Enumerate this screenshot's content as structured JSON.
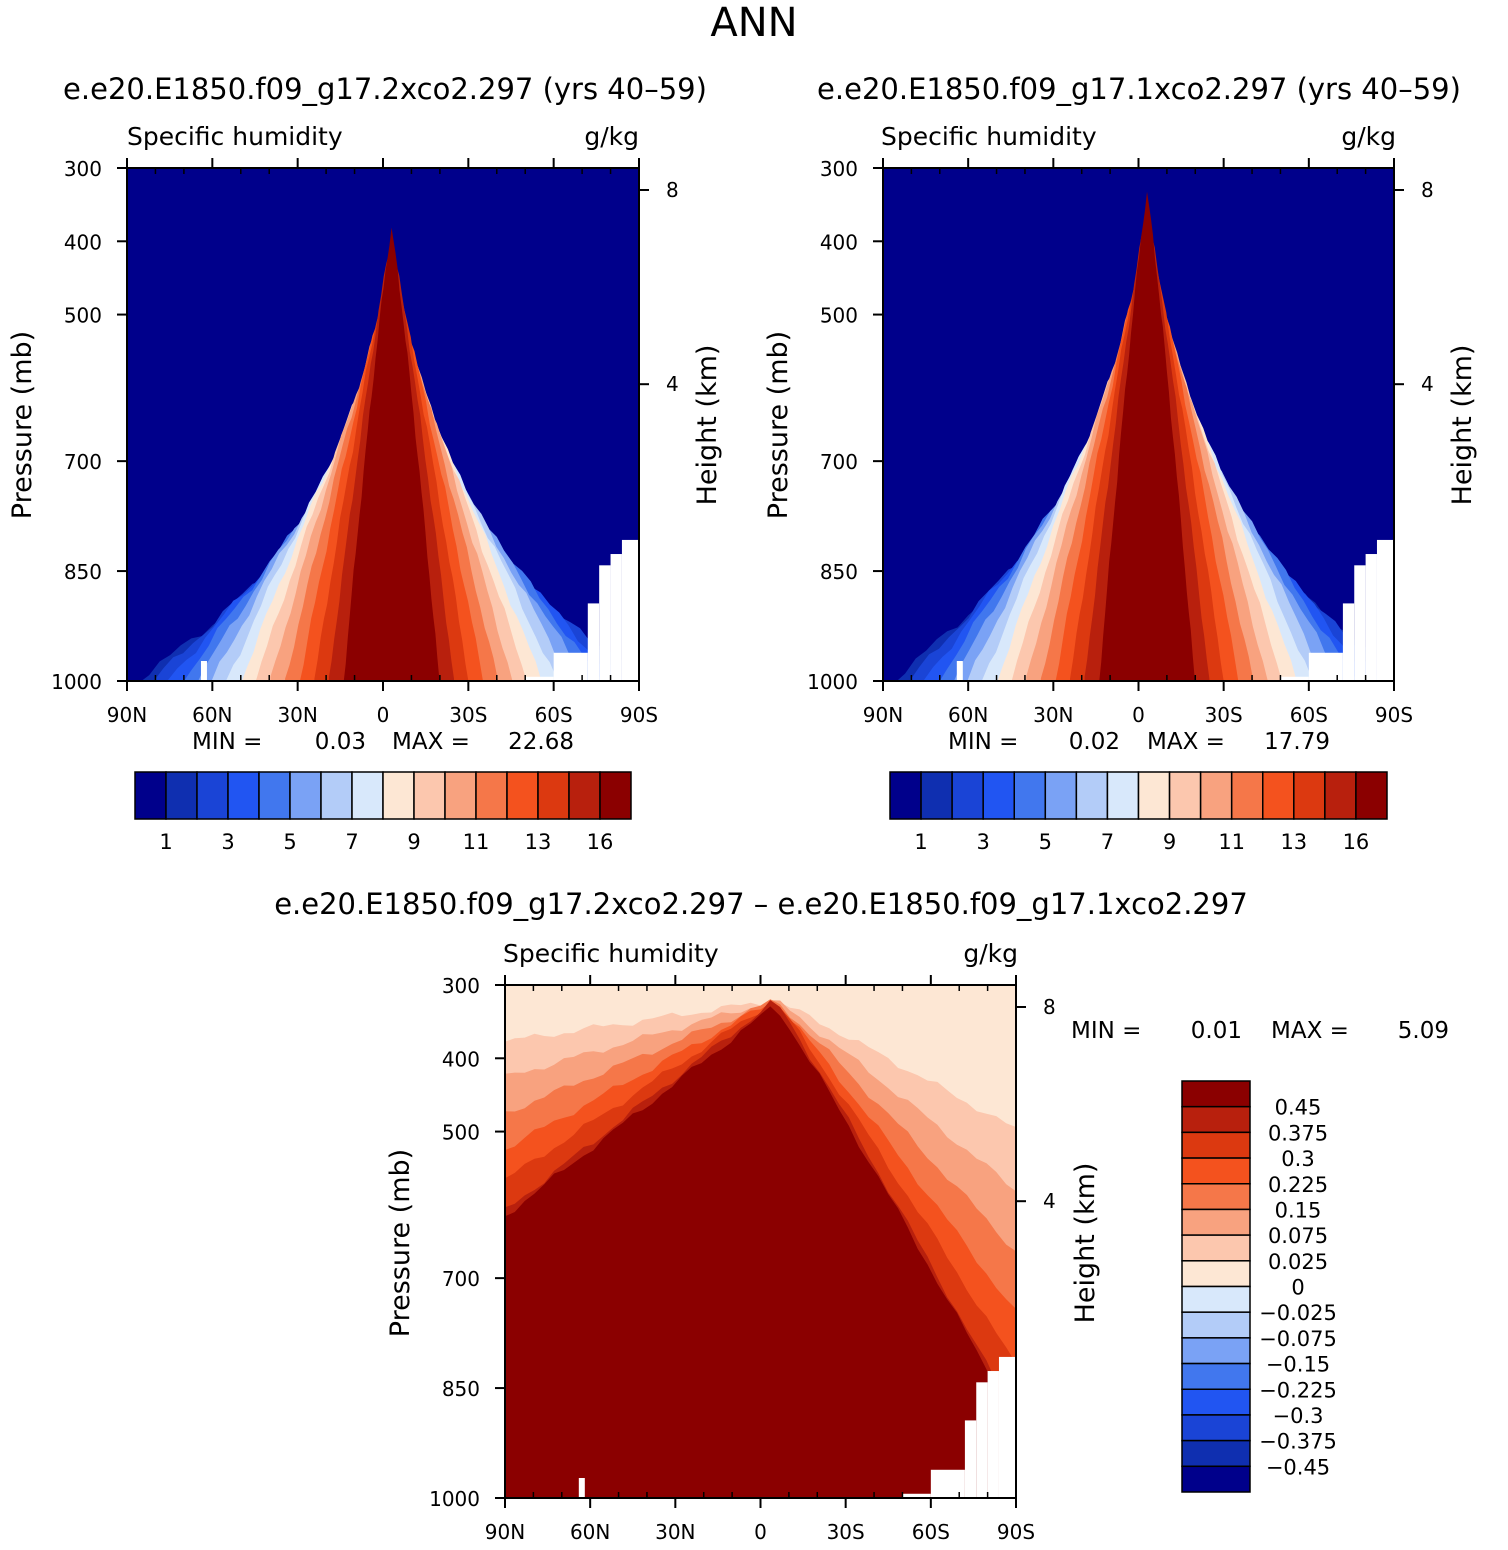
{
  "page": {
    "title": "ANN"
  },
  "colors": {
    "main_scale": [
      "#00008b",
      "#0f2fb0",
      "#1a44d6",
      "#2155f2",
      "#4177ee",
      "#7aa2f5",
      "#b3ccf8",
      "#d8e8fb",
      "#fde7d4",
      "#fcc7ae",
      "#f8a27f",
      "#f57749",
      "#f4521e",
      "#dc3910",
      "#b8200d",
      "#8b0000"
    ],
    "diff_scale": [
      "#00008b",
      "#0f2fb0",
      "#1a44d6",
      "#2155f2",
      "#4177ee",
      "#7aa2f5",
      "#b3ccf8",
      "#d8e8fb",
      "#fde7d4",
      "#fcc7ae",
      "#f8a27f",
      "#f57749",
      "#f4521e",
      "#dc3910",
      "#b8200d",
      "#8b0000"
    ]
  },
  "chart_data": [
    {
      "id": "panel1",
      "type": "contour",
      "title": "e.e20.E1850.f09_g17.2xco2.297 (yrs 40–59)",
      "left_label": "Specific humidity",
      "right_label": "g/kg",
      "ylabel": "Pressure (mb)",
      "ylabel2": "Height (km)",
      "x_ticks": [
        "90N",
        "60N",
        "30N",
        "0",
        "30S",
        "60S",
        "90S"
      ],
      "x_range": [
        90,
        -90
      ],
      "y_ticks": [
        300,
        400,
        500,
        700,
        850,
        1000
      ],
      "y_range": [
        300,
        1000
      ],
      "y2_ticks": [
        8,
        4
      ],
      "stats": {
        "min_label": "MIN =",
        "min": "0.03",
        "max_label": "MAX =",
        "max": "22.68"
      },
      "colorbar": {
        "orientation": "horizontal",
        "labels": [
          "1",
          "3",
          "5",
          "7",
          "9",
          "11",
          "13",
          "16"
        ]
      },
      "peak_heights": [
        0.66,
        0.6,
        0.55,
        0.5,
        0.46,
        0.42,
        0.38,
        0.34,
        0.3,
        0.26,
        0.23,
        0.2,
        0.17,
        0.14,
        0.12
      ],
      "ground": [
        [
          -90,
          1.0
        ],
        [
          -84,
          0.9
        ],
        [
          -80,
          0.82
        ],
        [
          -76,
          0.55
        ],
        [
          -72,
          0.2
        ],
        [
          -60,
          0.03
        ],
        [
          -50,
          0.03
        ]
      ]
    },
    {
      "id": "panel2",
      "type": "contour",
      "title": "e.e20.E1850.f09_g17.1xco2.297 (yrs 40–59)",
      "left_label": "Specific humidity",
      "right_label": "g/kg",
      "ylabel": "Pressure (mb)",
      "ylabel2": "Height (km)",
      "x_ticks": [
        "90N",
        "60N",
        "30N",
        "0",
        "30S",
        "60S",
        "90S"
      ],
      "x_range": [
        90,
        -90
      ],
      "y_ticks": [
        300,
        400,
        500,
        700,
        850,
        1000
      ],
      "y_range": [
        300,
        1000
      ],
      "y2_ticks": [
        8,
        4
      ],
      "stats": {
        "min_label": "MIN =",
        "min": "0.02",
        "max_label": "MAX =",
        "max": "17.79"
      },
      "colorbar": {
        "orientation": "horizontal",
        "labels": [
          "1",
          "3",
          "5",
          "7",
          "9",
          "11",
          "13",
          "16"
        ]
      },
      "peak_heights": [
        0.6,
        0.54,
        0.49,
        0.44,
        0.4,
        0.36,
        0.32,
        0.28,
        0.24,
        0.2,
        0.17,
        0.14,
        0.11,
        0.08,
        0.05
      ],
      "ground": [
        [
          -90,
          1.0
        ],
        [
          -84,
          0.9
        ],
        [
          -80,
          0.82
        ],
        [
          -76,
          0.55
        ],
        [
          -72,
          0.2
        ],
        [
          -60,
          0.03
        ],
        [
          -50,
          0.03
        ]
      ]
    },
    {
      "id": "diff",
      "type": "contour",
      "title": "e.e20.E1850.f09_g17.2xco2.297 – e.e20.E1850.f09_g17.1xco2.297",
      "left_label": "Specific humidity",
      "right_label": "g/kg",
      "ylabel": "Pressure (mb)",
      "ylabel2": "Height (km)",
      "x_ticks": [
        "90N",
        "60N",
        "30N",
        "0",
        "30S",
        "60S",
        "90S"
      ],
      "x_range": [
        90,
        -90
      ],
      "y_ticks": [
        300,
        400,
        500,
        700,
        850,
        1000
      ],
      "y_range": [
        300,
        1000
      ],
      "y2_ticks": [
        8,
        4
      ],
      "stats": {
        "min_label": "MIN =",
        "min": "0.01",
        "max_label": "MAX =",
        "max": "5.09"
      },
      "colorbar": {
        "orientation": "vertical",
        "labels": [
          "0.45",
          "0.375",
          "0.3",
          "0.225",
          "0.15",
          "0.075",
          "0.025",
          "0",
          "−0.025",
          "−0.075",
          "−0.15",
          "−0.225",
          "−0.3",
          "−0.375",
          "−0.45"
        ]
      },
      "ground": [
        [
          -90,
          1.0
        ],
        [
          -84,
          0.9
        ],
        [
          -80,
          0.82
        ],
        [
          -76,
          0.55
        ],
        [
          -72,
          0.2
        ],
        [
          -60,
          0.03
        ],
        [
          -50,
          0.03
        ]
      ]
    }
  ]
}
